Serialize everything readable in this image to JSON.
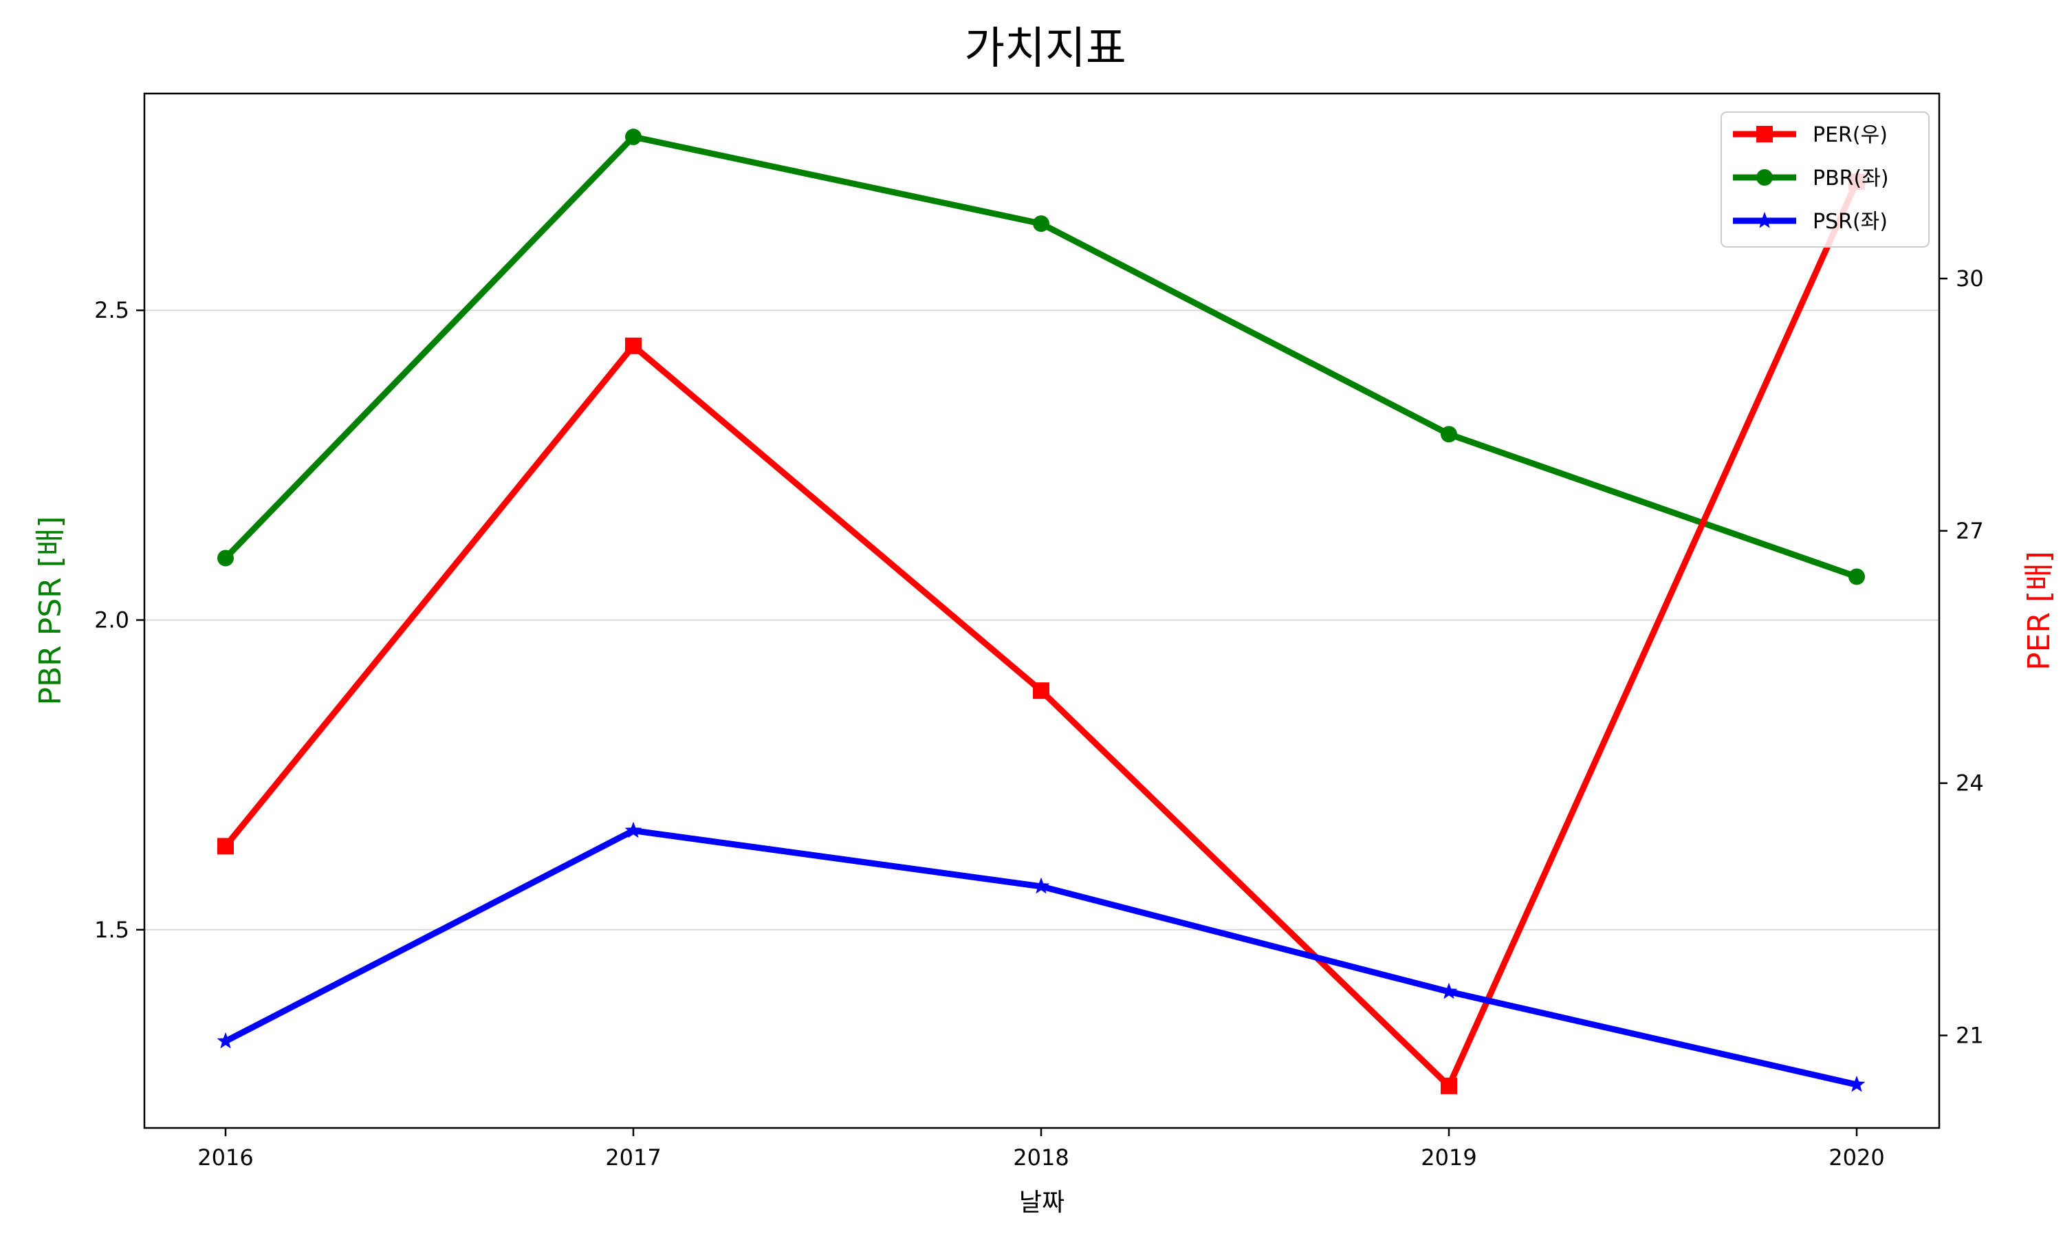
{
  "chart_data": {
    "type": "line",
    "title": "가치지표",
    "xlabel": "날짜",
    "ylabel_left": "PBR PSR [배]",
    "ylabel_right": "PER [배]",
    "x": [
      "2016",
      "2017",
      "2018",
      "2019",
      "2020"
    ],
    "ylim_left": [
      1.18,
      2.85
    ],
    "yticks_left": [
      "1.5",
      "2.0",
      "2.5"
    ],
    "ylim_right": [
      19.9,
      32.2
    ],
    "yticks_right": [
      "21",
      "24",
      "27",
      "30"
    ],
    "grid": "horizontal (left axis)",
    "legend_position": "top-right",
    "series": [
      {
        "name": "PER(우)",
        "axis": "right",
        "color": "#ff0000",
        "marker": "square",
        "values": [
          23.25,
          29.2,
          25.1,
          20.4,
          31.15
        ]
      },
      {
        "name": "PBR(좌)",
        "axis": "left",
        "color": "#008000",
        "marker": "circle",
        "values": [
          2.1,
          2.78,
          2.64,
          2.3,
          2.07
        ]
      },
      {
        "name": "PSR(좌)",
        "axis": "left",
        "color": "#0000ff",
        "marker": "star",
        "values": [
          1.32,
          1.66,
          1.57,
          1.4,
          1.25
        ]
      }
    ],
    "colors": {
      "left_axis_label": "#008000",
      "right_axis_label": "#ff0000"
    }
  }
}
